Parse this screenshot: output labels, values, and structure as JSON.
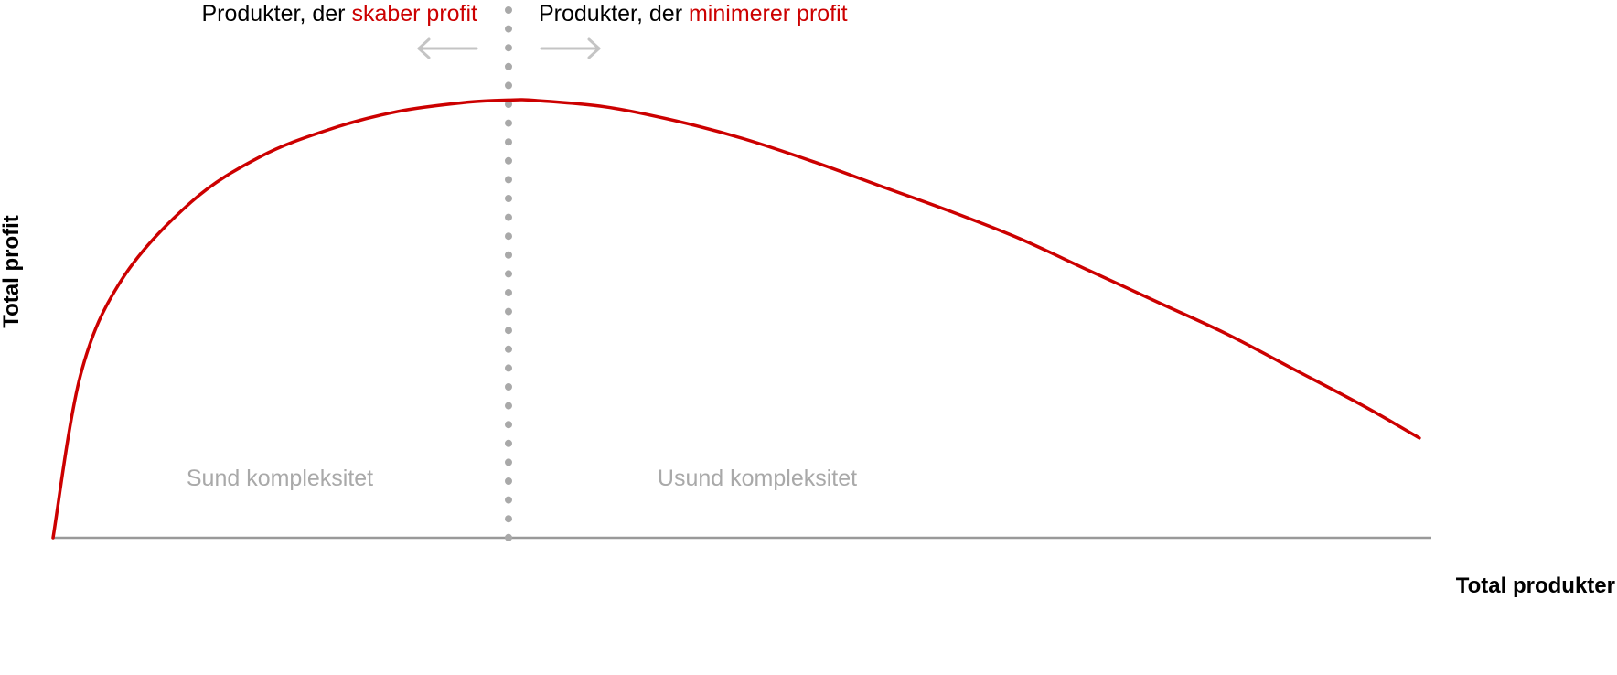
{
  "chart_data": {
    "type": "line",
    "title": "",
    "xlabel": "Total produkter",
    "ylabel": "Total profit",
    "grid": false,
    "legend": "none",
    "xlim": [
      0,
      100
    ],
    "ylim": [
      0,
      100
    ],
    "series": [
      {
        "color": "#cc0000",
        "x": [
          0,
          2,
          5,
          10,
          15,
          20,
          25,
          30,
          33,
          35,
          40,
          45,
          50,
          55,
          60,
          65,
          70,
          75,
          80,
          85,
          90,
          95,
          99
        ],
        "y": [
          0,
          36,
          57,
          74,
          84,
          90,
          94,
          96,
          96.5,
          96.4,
          95,
          92,
          88,
          83,
          77.5,
          72,
          66,
          59,
          52,
          45,
          37,
          29,
          22
        ]
      }
    ],
    "divider_x": 33,
    "annotations": {
      "left_header_prefix": "Produkter, der ",
      "left_header_highlight": "skaber profit",
      "right_header_prefix": "Produkter, der ",
      "right_header_highlight": "minimerer profit",
      "left_region_label": "Sund kompleksitet",
      "right_region_label": "Usund kompleksitet"
    },
    "colors": {
      "curve": "#cc0000",
      "highlight": "#cc0000",
      "divider": "#a9a9a9",
      "axis": "#999999",
      "arrows": "#c4c4c4",
      "region_labels": "#a9a9a9",
      "text": "#000000"
    }
  }
}
